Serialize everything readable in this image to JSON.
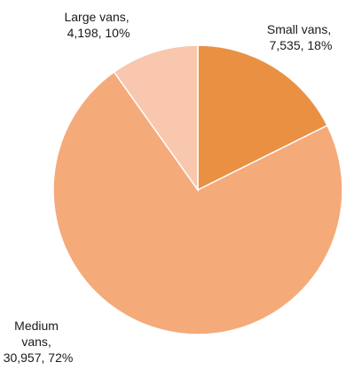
{
  "chart_data": {
    "type": "pie",
    "slices": [
      {
        "name": "Small vans",
        "value": 7535,
        "percent": "18%",
        "label_lines": [
          "Small vans,",
          "7,535, 18%"
        ],
        "color": "#E99043"
      },
      {
        "name": "Medium vans",
        "value": 30957,
        "percent": "72%",
        "label_lines": [
          "Medium",
          "vans,",
          "30,957, 72%"
        ],
        "color": "#F5AA7A"
      },
      {
        "name": "Large vans",
        "value": 4198,
        "percent": "10%",
        "label_lines": [
          "Large vans,",
          "4,198, 10%"
        ],
        "color": "#F8C7AE"
      }
    ],
    "legend": "none"
  }
}
